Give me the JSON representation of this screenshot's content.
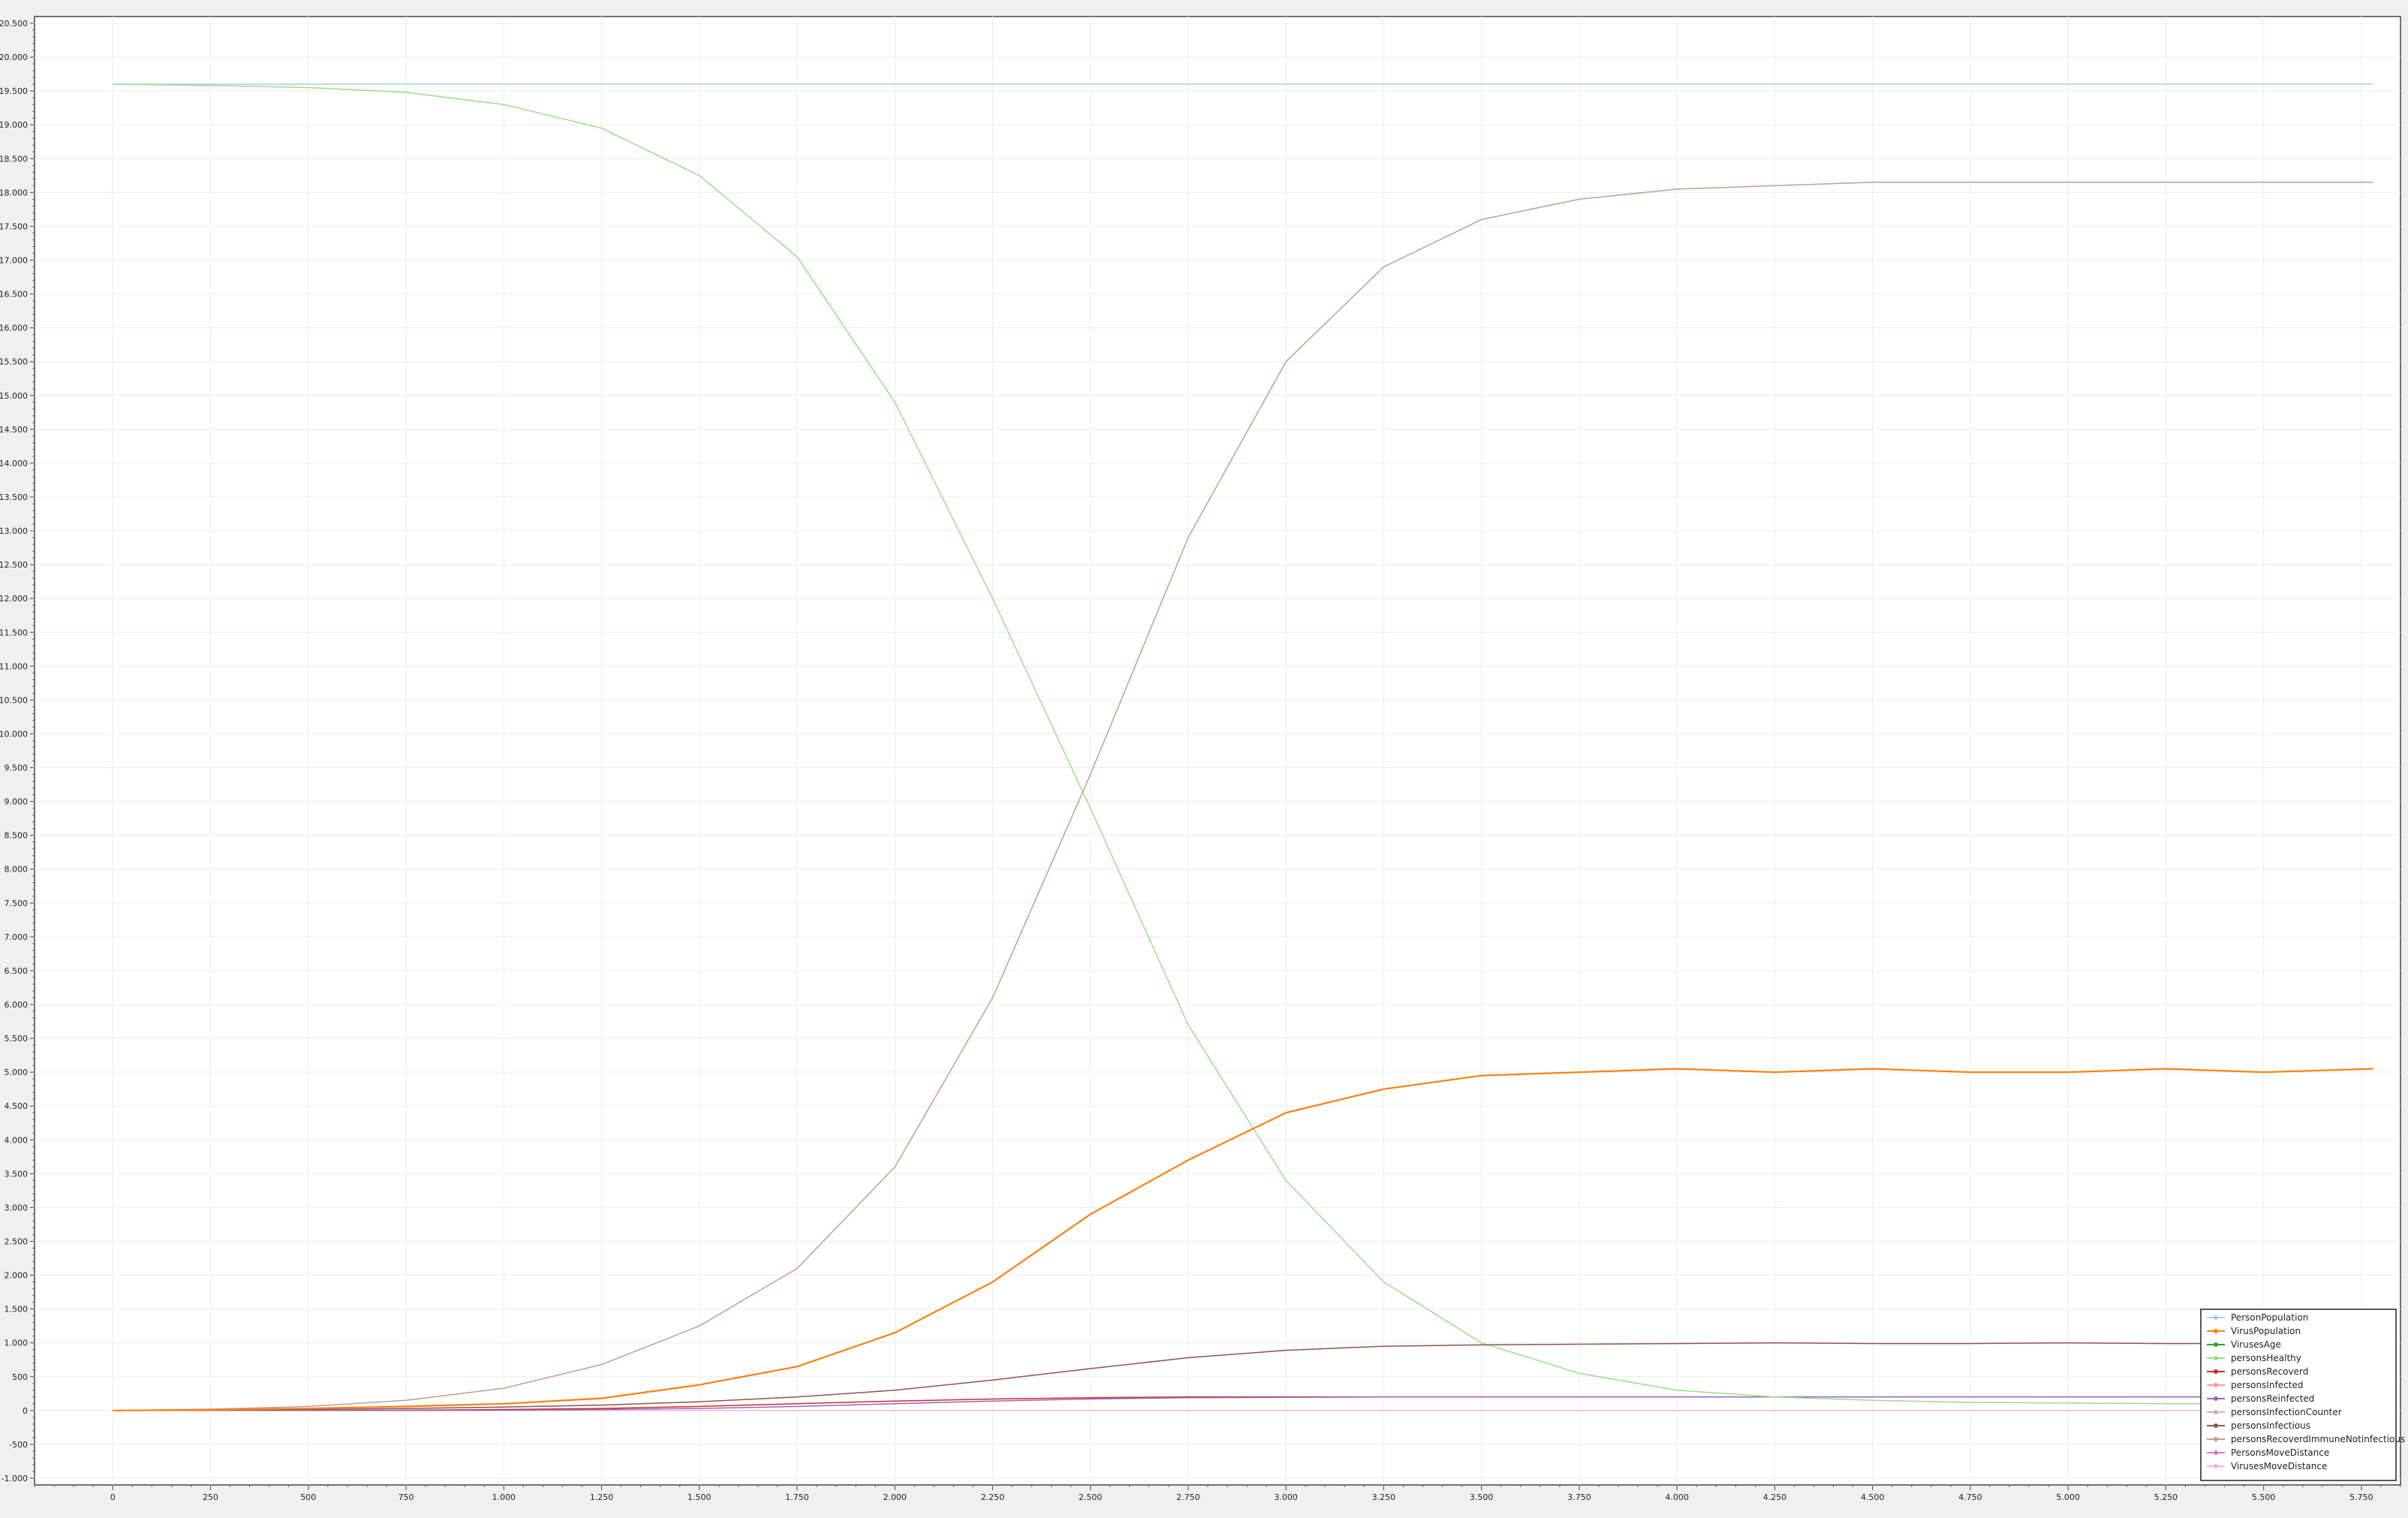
{
  "chart_data": {
    "type": "line",
    "title": "",
    "xlabel": "",
    "ylabel": "",
    "xlim": [
      -200,
      5850
    ],
    "ylim": [
      -1100,
      20600
    ],
    "grid": true,
    "legend_position": "bottom-right",
    "x_ticks": [
      0,
      250,
      500,
      750,
      1000,
      1250,
      1500,
      1750,
      2000,
      2250,
      2500,
      2750,
      3000,
      3250,
      3500,
      3750,
      4000,
      4250,
      4500,
      4750,
      5000,
      5250,
      5500,
      5750
    ],
    "x_tick_labels": [
      "0",
      "250",
      "500",
      "750",
      "1.000",
      "1.250",
      "1.500",
      "1.750",
      "2.000",
      "2.250",
      "2.500",
      "2.750",
      "3.000",
      "3.250",
      "3.500",
      "3.750",
      "4.000",
      "4.250",
      "4.500",
      "4.750",
      "5.000",
      "5.250",
      "5.500",
      "5.750"
    ],
    "y_ticks": [
      -1000,
      -500,
      0,
      500,
      1000,
      1500,
      2000,
      2500,
      3000,
      3500,
      4000,
      4500,
      5000,
      5500,
      6000,
      6500,
      7000,
      7500,
      8000,
      8500,
      9000,
      9500,
      10000,
      10500,
      11000,
      11500,
      12000,
      12500,
      13000,
      13500,
      14000,
      14500,
      15000,
      15500,
      16000,
      16500,
      17000,
      17500,
      18000,
      18500,
      19000,
      19500,
      20000,
      20500
    ],
    "y_tick_labels": [
      "-1.000",
      "-500",
      "0",
      "500",
      "1.000",
      "1.500",
      "2.000",
      "2.500",
      "3.000",
      "3.500",
      "4.000",
      "4.500",
      "5.000",
      "5.500",
      "6.000",
      "6.500",
      "7.000",
      "7.500",
      "8.000",
      "8.500",
      "9.000",
      "9.500",
      "10.000",
      "10.500",
      "11.000",
      "11.500",
      "12.000",
      "12.500",
      "13.000",
      "13.500",
      "14.000",
      "14.500",
      "15.000",
      "15.500",
      "16.000",
      "16.500",
      "17.000",
      "17.500",
      "18.000",
      "18.500",
      "19.000",
      "19.500",
      "20.000",
      "20.500"
    ],
    "x": [
      0,
      250,
      500,
      750,
      1000,
      1250,
      1500,
      1750,
      2000,
      2250,
      2500,
      2750,
      3000,
      3250,
      3500,
      3750,
      4000,
      4250,
      4500,
      4750,
      5000,
      5250,
      5500,
      5780
    ],
    "series": [
      {
        "name": "PersonPopulation",
        "color": "#a6cee3",
        "values": [
          19600,
          19600,
          19600,
          19600,
          19600,
          19600,
          19600,
          19600,
          19600,
          19600,
          19600,
          19600,
          19600,
          19600,
          19600,
          19600,
          19600,
          19600,
          19600,
          19600,
          19600,
          19600,
          19600,
          19600
        ]
      },
      {
        "name": "VirusPopulation",
        "color": "#ff7f0e",
        "values": [
          0,
          10,
          30,
          60,
          100,
          180,
          380,
          650,
          1150,
          1900,
          2900,
          3700,
          4400,
          4750,
          4950,
          5000,
          5050,
          5000,
          5050,
          5000,
          5000,
          5050,
          5000,
          5050
        ]
      },
      {
        "name": "VirusesAge",
        "color": "#2ca02c",
        "values": [
          0,
          0,
          0,
          0,
          0,
          0,
          0,
          0,
          0,
          0,
          0,
          0,
          0,
          0,
          0,
          0,
          0,
          0,
          0,
          0,
          0,
          0,
          0,
          0
        ]
      },
      {
        "name": "personsHealthy",
        "color": "#98df8a",
        "values": [
          19600,
          19580,
          19550,
          19480,
          19300,
          18950,
          18250,
          17050,
          14900,
          12000,
          8900,
          5700,
          3400,
          1900,
          1000,
          550,
          300,
          200,
          150,
          120,
          110,
          100,
          100,
          100
        ]
      },
      {
        "name": "personsRecoverd",
        "color": "#d62728",
        "values": [
          0,
          0,
          0,
          5,
          15,
          30,
          60,
          100,
          140,
          170,
          190,
          200,
          200,
          200,
          200,
          200,
          200,
          200,
          200,
          200,
          200,
          200,
          200,
          200
        ]
      },
      {
        "name": "personsInfected",
        "color": "#ff9896",
        "values": [
          0,
          0,
          0,
          0,
          0,
          0,
          0,
          0,
          0,
          0,
          0,
          0,
          0,
          0,
          0,
          0,
          0,
          0,
          0,
          0,
          0,
          0,
          0,
          0
        ]
      },
      {
        "name": "personsReinfected",
        "color": "#9467bd",
        "values": [
          0,
          0,
          0,
          0,
          5,
          15,
          30,
          60,
          100,
          140,
          170,
          190,
          195,
          200,
          200,
          200,
          200,
          200,
          200,
          200,
          200,
          200,
          200,
          200
        ]
      },
      {
        "name": "personsInfectionCounter",
        "color": "#c5b0d5",
        "values": [
          0,
          0,
          0,
          0,
          0,
          0,
          0,
          0,
          0,
          0,
          0,
          0,
          0,
          0,
          0,
          0,
          0,
          0,
          0,
          0,
          0,
          0,
          0,
          0
        ]
      },
      {
        "name": "personsInfectious",
        "color": "#8c564b",
        "values": [
          0,
          5,
          15,
          30,
          50,
          80,
          130,
          200,
          300,
          450,
          620,
          780,
          890,
          950,
          970,
          980,
          990,
          1000,
          990,
          990,
          1000,
          990,
          990,
          1000
        ]
      },
      {
        "name": "personsRecoverdImmuneNotinfectious",
        "color": "#c49c94",
        "values": [
          0,
          20,
          60,
          150,
          330,
          680,
          1250,
          2100,
          3600,
          6100,
          9400,
          12900,
          15500,
          16900,
          17600,
          17900,
          18050,
          18100,
          18150,
          18150,
          18150,
          18150,
          18150,
          18150
        ]
      },
      {
        "name": "PersonsMoveDistance",
        "color": "#e377c2",
        "values": [
          0,
          0,
          0,
          0,
          0,
          0,
          0,
          0,
          0,
          0,
          0,
          0,
          0,
          0,
          0,
          0,
          0,
          0,
          0,
          0,
          0,
          0,
          0,
          0
        ]
      },
      {
        "name": "VirusesMoveDistance",
        "color": "#f7b6d2",
        "values": [
          0,
          0,
          0,
          0,
          0,
          0,
          0,
          0,
          0,
          0,
          0,
          0,
          0,
          0,
          0,
          0,
          0,
          0,
          0,
          0,
          0,
          0,
          0,
          0
        ]
      }
    ]
  }
}
